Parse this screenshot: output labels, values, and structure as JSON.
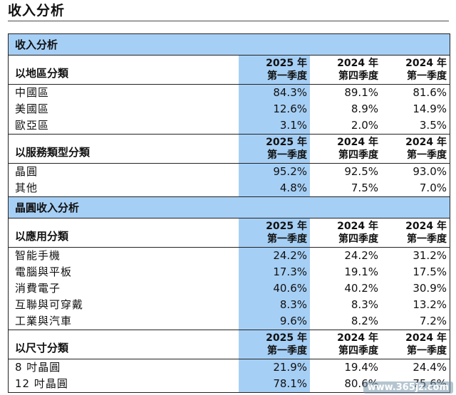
{
  "page_title": "收入分析",
  "band1": "收入分析",
  "band2": "晶圓收入分析",
  "col_headers": [
    {
      "year": "2025 年",
      "quarter": "第一季度"
    },
    {
      "year": "2024 年",
      "quarter": "第四季度"
    },
    {
      "year": "2024 年",
      "quarter": "第一季度"
    }
  ],
  "sections": [
    {
      "title": "以地區分類",
      "rows": [
        {
          "label": "中國區",
          "values": [
            "84.3%",
            "89.1%",
            "81.6%"
          ]
        },
        {
          "label": "美國區",
          "values": [
            "12.6%",
            "8.9%",
            "14.9%"
          ]
        },
        {
          "label": "歐亞區",
          "values": [
            "3.1%",
            "2.0%",
            "3.5%"
          ]
        }
      ]
    },
    {
      "title": "以服務類型分類",
      "rows": [
        {
          "label": "晶圓",
          "values": [
            "95.2%",
            "92.5%",
            "93.0%"
          ]
        },
        {
          "label": "其他",
          "values": [
            "4.8%",
            "7.5%",
            "7.0%"
          ]
        }
      ]
    },
    {
      "title": "以應用分類",
      "rows": [
        {
          "label": "智能手機",
          "values": [
            "24.2%",
            "24.2%",
            "31.2%"
          ]
        },
        {
          "label": "電腦與平板",
          "values": [
            "17.3%",
            "19.1%",
            "17.5%"
          ]
        },
        {
          "label": "消費電子",
          "values": [
            "40.6%",
            "40.2%",
            "30.9%"
          ]
        },
        {
          "label": "互聯與可穿戴",
          "values": [
            "8.3%",
            "8.3%",
            "13.2%"
          ]
        },
        {
          "label": "工業與汽車",
          "values": [
            "9.6%",
            "8.2%",
            "7.2%"
          ]
        }
      ]
    },
    {
      "title": "以尺寸分類",
      "rows": [
        {
          "label": "8 吋晶圓",
          "values": [
            "21.9%",
            "19.4%",
            "24.4%"
          ]
        },
        {
          "label": "12 吋晶圓",
          "values": [
            "78.1%",
            "80.6%",
            "75.6%"
          ]
        }
      ]
    }
  ],
  "watermark": "www.365jz.com"
}
